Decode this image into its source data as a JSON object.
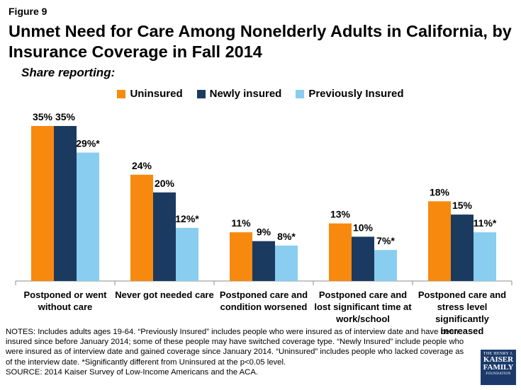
{
  "figure_label": "Figure 9",
  "chart_data": {
    "type": "bar",
    "title": "Unmet Need for Care Among Nonelderly Adults in California, by Insurance Coverage in Fall 2014",
    "subtitle": "Share reporting:",
    "categories": [
      [
        "Postponed or went",
        "without care"
      ],
      [
        "Never got needed care"
      ],
      [
        "Postponed care and",
        "condition worsened"
      ],
      [
        "Postponed care and",
        "lost significant time at",
        "work/school"
      ],
      [
        "Postponed care and",
        "stress level significantly",
        "increased"
      ]
    ],
    "series": [
      {
        "name": "Uninsured",
        "color": "#f7890f",
        "values": [
          35,
          24,
          11,
          13,
          18
        ],
        "labels": [
          "35%",
          "24%",
          "11%",
          "13%",
          "18%"
        ]
      },
      {
        "name": "Newly insured",
        "color": "#1b3a5f",
        "values": [
          35,
          20,
          9,
          10,
          15
        ],
        "labels": [
          "35%",
          "20%",
          "9%",
          "10%",
          "15%"
        ]
      },
      {
        "name": "Previously Insured",
        "color": "#89cdf0",
        "values": [
          29,
          12,
          8,
          7,
          11
        ],
        "labels": [
          "29%*",
          "12%*",
          "8%*",
          "7%*",
          "11%*"
        ]
      }
    ],
    "ylim": [
      0,
      35
    ],
    "legend_position": "top-center",
    "grid": false
  },
  "notes": [
    "NOTES: Includes adults ages 19-64. “Previously Insured” includes people who were insured as of interview date and have been insured since before January 2014; some of these people may have switched coverage type. “Newly Insured” include people who were insured as of interview date and gained coverage since January 2014. “Uninsured” includes people who lacked coverage as of the interview date. *Significantly different from Uninsured at the p<0.05 level.",
    "SOURCE: 2014 Kaiser Survey of Low-Income Americans and the ACA."
  ],
  "logo": {
    "line1": "THE HENRY J.",
    "line2": "KAISER",
    "line3": "FAMILY",
    "line4": "FOUNDATION"
  }
}
